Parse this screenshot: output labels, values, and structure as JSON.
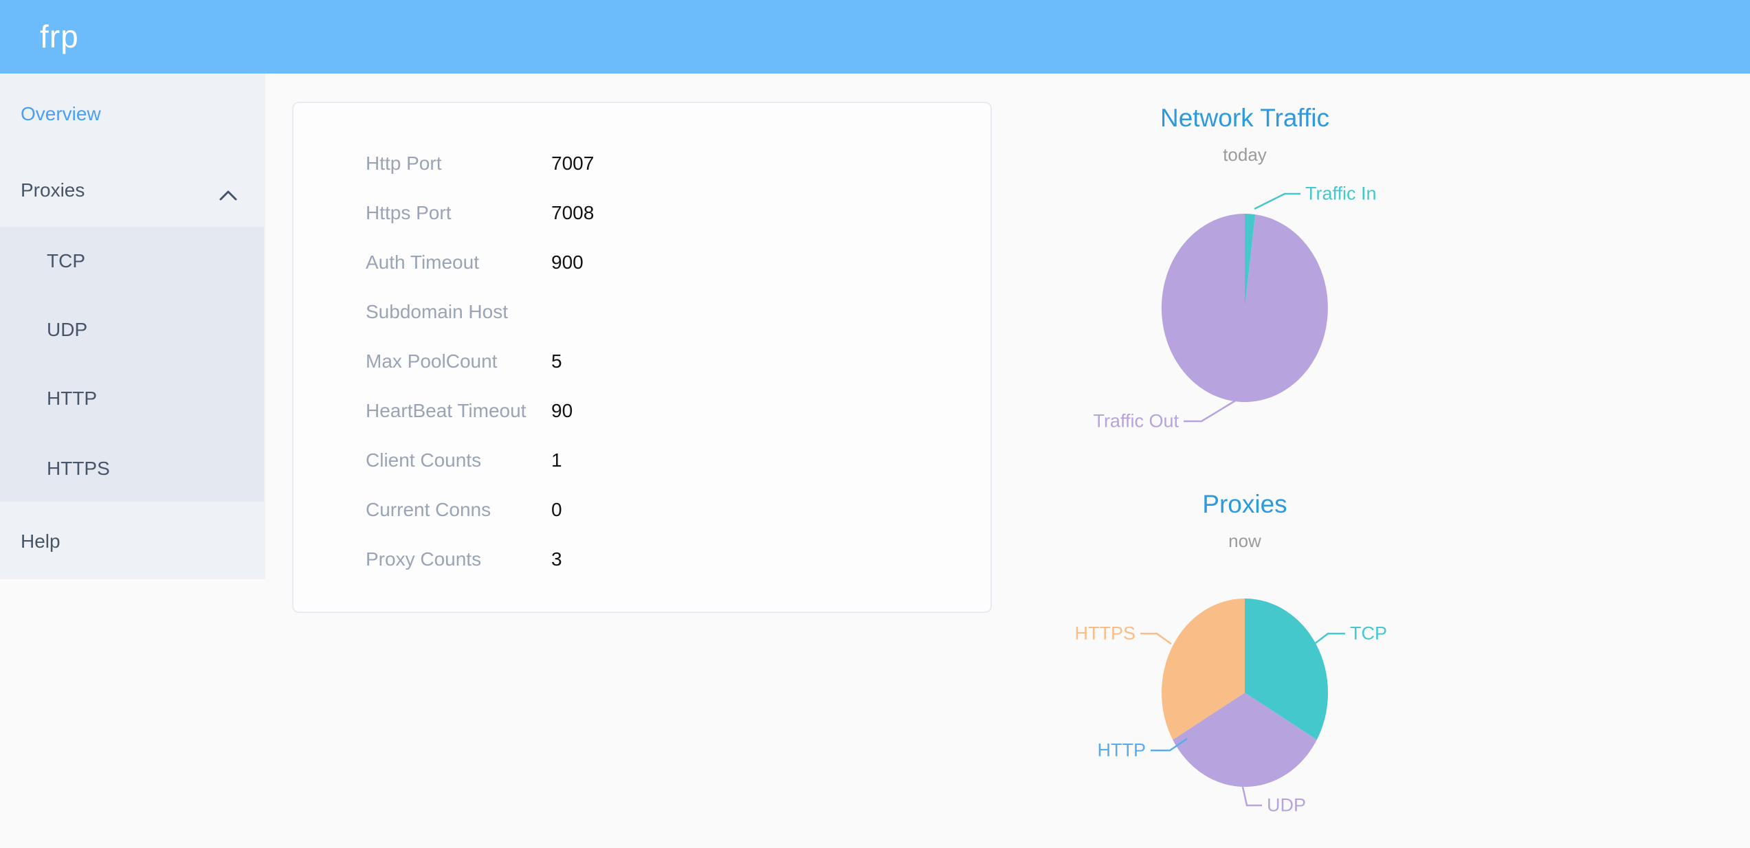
{
  "header": {
    "logo": "frp"
  },
  "sidebar": {
    "items": [
      {
        "label": "Overview",
        "state": "active"
      },
      {
        "label": "Proxies",
        "state": "expanded"
      },
      {
        "label": "TCP"
      },
      {
        "label": "UDP"
      },
      {
        "label": "HTTP"
      },
      {
        "label": "HTTPS"
      },
      {
        "label": "Help"
      }
    ]
  },
  "overview": {
    "rows": [
      {
        "label": "Http Port",
        "value": "7007"
      },
      {
        "label": "Https Port",
        "value": "7008"
      },
      {
        "label": "Auth Timeout",
        "value": "900"
      },
      {
        "label": "Subdomain Host",
        "value": ""
      },
      {
        "label": "Max PoolCount",
        "value": "5"
      },
      {
        "label": "HeartBeat Timeout",
        "value": "90"
      },
      {
        "label": "Client Counts",
        "value": "1"
      },
      {
        "label": "Current Conns",
        "value": "0"
      },
      {
        "label": "Proxy Counts",
        "value": "3"
      }
    ]
  },
  "chart_data": [
    {
      "type": "pie",
      "title": "Network Traffic",
      "subtitle": "today",
      "legend_position": "callout-labels",
      "series": [
        {
          "name": "Traffic In",
          "value": 2,
          "color": "#45c8cc"
        },
        {
          "name": "Traffic Out",
          "value": 98,
          "color": "#b7a3dd"
        }
      ]
    },
    {
      "type": "pie",
      "title": "Proxies",
      "subtitle": "now",
      "legend_position": "callout-labels",
      "series": [
        {
          "name": "TCP",
          "value": 1,
          "color": "#45c8cc"
        },
        {
          "name": "UDP",
          "value": 1,
          "color": "#b7a3dd"
        },
        {
          "name": "HTTP",
          "value": 0,
          "color": "#58acee"
        },
        {
          "name": "HTTPS",
          "value": 1,
          "color": "#f9bd87"
        }
      ]
    }
  ],
  "colors": {
    "header": "#6cbcfb",
    "title_accent": "#2d9ade",
    "active_link": "#4aa0f8",
    "menu_text": "#475568",
    "card_label": "#9aa4b5",
    "teal": "#45c8cc",
    "purple": "#b7a3dd",
    "orange": "#f9bd87",
    "blue": "#58acee"
  }
}
